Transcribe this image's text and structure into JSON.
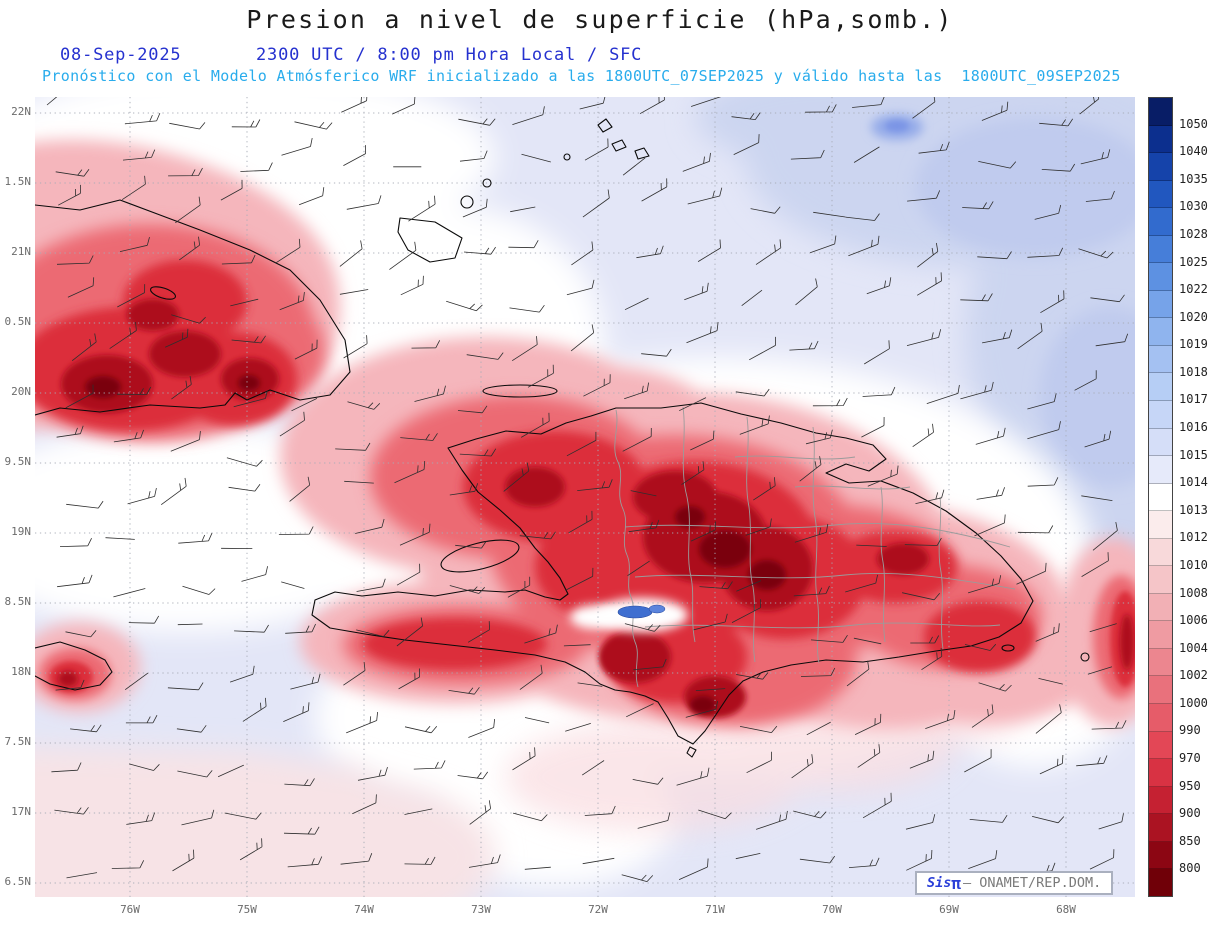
{
  "header": {
    "title": "Presion a nivel de superficie (hPa,somb.)",
    "date": "08-Sep-2025",
    "time": "2300 UTC / 8:00 pm Hora Local / SFC",
    "forecast": "Pronóstico con el Modelo Atmósferico WRF inicializado a las 1800UTC_07SEP2025 y válido hasta las  1800UTC_09SEP2025"
  },
  "axes": {
    "lat_labels": [
      "22N",
      "1.5N",
      "21N",
      "0.5N",
      "20N",
      "9.5N",
      "19N",
      "8.5N",
      "18N",
      "7.5N",
      "17N",
      "6.5N"
    ],
    "lon_labels": [
      "76W",
      "75W",
      "74W",
      "73W",
      "72W",
      "71W",
      "70W",
      "69W",
      "68W"
    ]
  },
  "colorbar": {
    "unit": "hPa",
    "labels": [
      "1050",
      "1040",
      "1035",
      "1030",
      "1028",
      "1025",
      "1022",
      "1020",
      "1019",
      "1018",
      "1017",
      "1016",
      "1015",
      "1014",
      "1013",
      "1012",
      "1010",
      "1008",
      "1006",
      "1004",
      "1002",
      "1000",
      "990",
      "970",
      "950",
      "900",
      "850",
      "800"
    ],
    "colors": [
      "#081d66",
      "#0c2f8e",
      "#1543aa",
      "#2157bf",
      "#326bce",
      "#467ed9",
      "#5d91e2",
      "#76a3e9",
      "#8fb4ee",
      "#a4c1f2",
      "#b6cef5",
      "#c6d6f7",
      "#d5def8",
      "#e6eafa",
      "#ffffff",
      "#fbecec",
      "#f8d9da",
      "#f5c5c8",
      "#f2b0b5",
      "#ef9ba2",
      "#ec868f",
      "#e9717c",
      "#e65c69",
      "#e34756",
      "#d83243",
      "#c52132",
      "#ab1322",
      "#8c0613",
      "#700008"
    ]
  },
  "credit": {
    "brand": "Sis",
    "pi": "π",
    "org": "– ONAMET/REP.DOM."
  }
}
